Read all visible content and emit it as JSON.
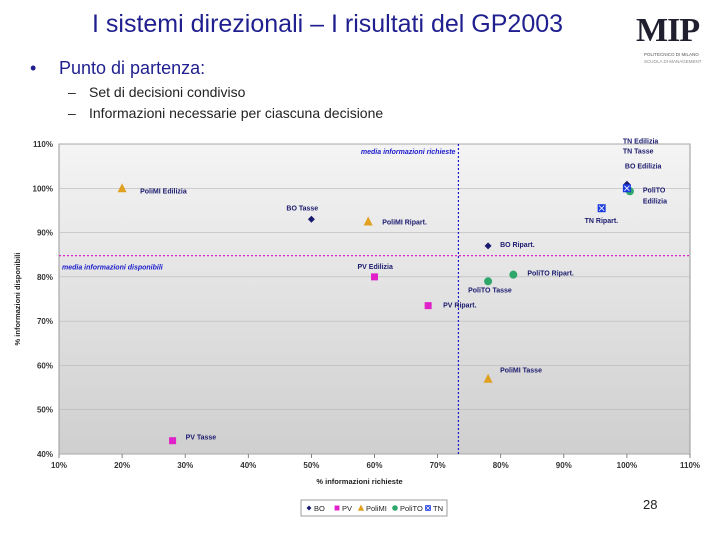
{
  "slide": {
    "title": "I sistemi direzionali – I risultati del GP2003",
    "bullet": "•",
    "bullet_text": "Punto di partenza:",
    "sub_dash": "–",
    "sub_items": [
      "Set di decisioni condiviso",
      "Informazioni necessarie per ciascuna decisione"
    ],
    "page_number": "28"
  },
  "logo": {
    "text": "MIP",
    "line1": "POLITECNICO DI MILANO",
    "line2": "SCUOLA DI MANAGEMENT"
  },
  "chart_data": {
    "type": "scatter",
    "xlabel": "% informazioni richieste",
    "ylabel": "% informazioni disponibili",
    "xlim": [
      0.1,
      1.1
    ],
    "ylim": [
      0.4,
      1.1
    ],
    "xticks": [
      0.1,
      0.2,
      0.3,
      0.4,
      0.5,
      0.6,
      0.7,
      0.8,
      0.9,
      1.0,
      1.1
    ],
    "yticks": [
      0.4,
      0.5,
      0.6,
      0.7,
      0.8,
      0.9,
      1.0,
      1.1
    ],
    "xtick_labels": [
      "10%",
      "20%",
      "30%",
      "40%",
      "50%",
      "60%",
      "70%",
      "80%",
      "90%",
      "100%",
      "110%"
    ],
    "ytick_labels": [
      "40%",
      "50%",
      "60%",
      "70%",
      "80%",
      "90%",
      "100%",
      "110%"
    ],
    "colors": {
      "BO": "#1a1a6e",
      "PV": "#e020c8",
      "PoliMI": "#e0a020",
      "PoliTO": "#2ea86a",
      "TN": "#1a3adf",
      "ref": "#1a1acc",
      "ref2": "#e020c8",
      "plot_bg": "#e8e8e8"
    },
    "references": {
      "vertical": {
        "x": 0.733,
        "label": "media informazioni richieste"
      },
      "horizontal": {
        "y": 0.848,
        "label": "media informazioni disponibili"
      }
    },
    "legend": {
      "position": "bottom",
      "items": [
        {
          "name": "BO",
          "marker": "diamond"
        },
        {
          "name": "PV",
          "marker": "square"
        },
        {
          "name": "PoliMI",
          "marker": "triangle"
        },
        {
          "name": "PoliTO",
          "marker": "circle"
        },
        {
          "name": "TN",
          "marker": "x-square"
        }
      ]
    },
    "series": [
      {
        "name": "BO",
        "marker": "diamond",
        "points": [
          {
            "x": 0.5,
            "y": 0.93,
            "label": "BO Tasse"
          },
          {
            "x": 0.78,
            "y": 0.87,
            "label": "BO Ripart."
          },
          {
            "x": 1.0,
            "y": 1.0,
            "label": "BO Edilizia"
          }
        ]
      },
      {
        "name": "PV",
        "marker": "square",
        "points": [
          {
            "x": 0.6,
            "y": 0.8,
            "label": "PV Edilizia"
          },
          {
            "x": 0.685,
            "y": 0.735,
            "label": "PV Ripart."
          },
          {
            "x": 0.28,
            "y": 0.43,
            "label": "PV Tasse"
          }
        ]
      },
      {
        "name": "PoliMI",
        "marker": "triangle",
        "points": [
          {
            "x": 0.2,
            "y": 1.0,
            "label": "PoliMI Edilizia"
          },
          {
            "x": 0.59,
            "y": 0.925,
            "label": "PoliMI Ripart."
          },
          {
            "x": 0.78,
            "y": 0.57,
            "label": "PoliMI Tasse"
          }
        ]
      },
      {
        "name": "PoliTO",
        "marker": "circle",
        "points": [
          {
            "x": 0.78,
            "y": 0.79,
            "label": "PoliTO Tasse"
          },
          {
            "x": 0.82,
            "y": 0.805,
            "label": "PoliTO Ripart."
          },
          {
            "x": 1.0,
            "y": 1.0,
            "label": "PoliTO Edilizia"
          }
        ]
      },
      {
        "name": "TN",
        "marker": "x-square",
        "points": [
          {
            "x": 1.0,
            "y": 1.0,
            "label": "TN Edilizia"
          },
          {
            "x": 1.0,
            "y": 1.0,
            "label": "TN Tasse"
          },
          {
            "x": 0.96,
            "y": 0.955,
            "label": "TN Ripart."
          }
        ]
      }
    ]
  }
}
